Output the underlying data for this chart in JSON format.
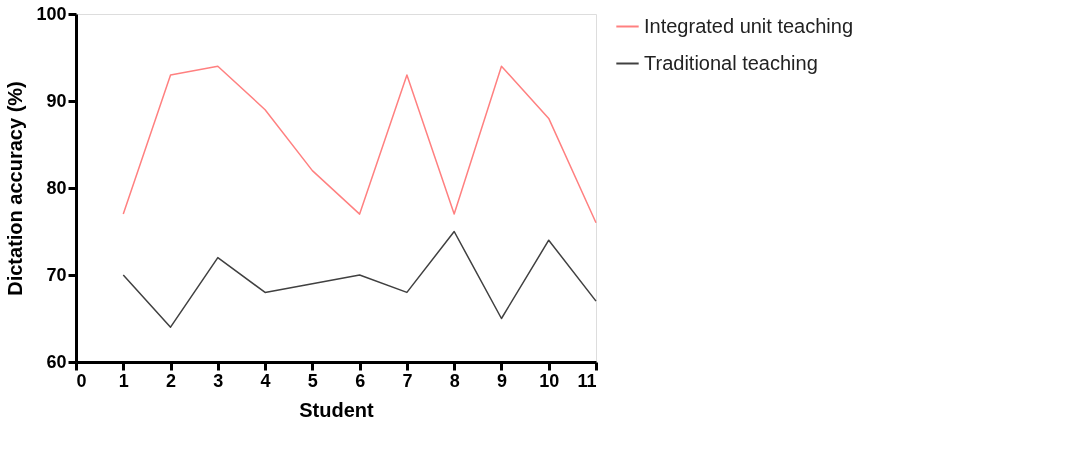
{
  "chart_data": {
    "type": "line",
    "xlabel": "Student",
    "ylabel": "Dictation accuracy (%)",
    "x": [
      1,
      2,
      3,
      4,
      5,
      6,
      7,
      8,
      9,
      10,
      11
    ],
    "series": [
      {
        "name": "Integrated unit teaching",
        "color": "#ff8080",
        "values": [
          77,
          93,
          94,
          89,
          82,
          77,
          93,
          77,
          94,
          88,
          76
        ]
      },
      {
        "name": "Traditional teaching",
        "color": "#404040",
        "values": [
          70,
          64,
          72,
          68,
          69,
          70,
          68,
          75,
          65,
          74,
          67
        ]
      }
    ],
    "xlim": [
      0,
      11
    ],
    "xticks": [
      0,
      1,
      2,
      3,
      4,
      5,
      6,
      7,
      8,
      9,
      10,
      11
    ],
    "ylim": [
      60,
      100
    ],
    "yticks": [
      60,
      70,
      80,
      90,
      100
    ],
    "grid": false,
    "legend": "top right",
    "marker": "none",
    "line_style": "solid"
  }
}
